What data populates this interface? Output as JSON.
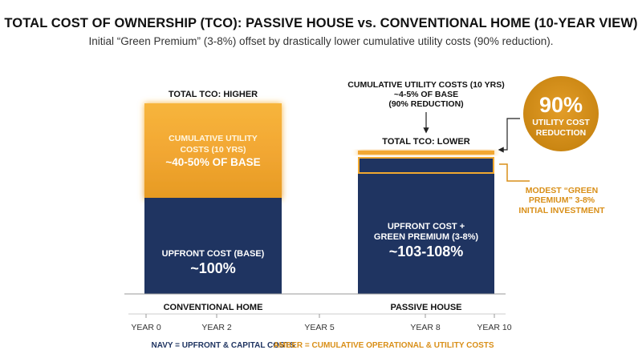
{
  "title": "TOTAL COST OF OWNERSHIP (TCO): PASSIVE HOUSE vs. CONVENTIONAL HOME (10-YEAR VIEW)",
  "subtitle": "Initial “Green Premium” (3-8%) offset by drastically lower cumulative utility costs (90% reduction).",
  "colors": {
    "navy": "#1f3461",
    "amber": "#f0a830",
    "amber_dark": "#d98f18",
    "amber_text": "#d98f18",
    "text": "#111111"
  },
  "chart_data": {
    "type": "bar",
    "stacked": true,
    "categories": [
      "CONVENTIONAL HOME",
      "PASSIVE HOUSE"
    ],
    "x_ticks": [
      "YEAR 0",
      "YEAR 2",
      "YEAR 5",
      "YEAR 8",
      "YEAR 10"
    ],
    "ylim": [
      0,
      160
    ],
    "series": [
      {
        "name": "NAVY = UPFRONT & CAPITAL COSTS",
        "values": [
          100,
          105.5
        ]
      },
      {
        "name": "AMBER = CUMULATIVE OPERATIONAL & UTILITY COSTS",
        "values": [
          45,
          4.5
        ]
      }
    ],
    "bars": [
      {
        "total_label": "TOTAL TCO: HIGHER",
        "base_label": [
          "UPFRONT COST (BASE)"
        ],
        "base_value": "~100%",
        "top_label": [
          "CUMULATIVE UTILITY",
          "COSTS (10 YRS)"
        ],
        "top_value": "~40-50% OF BASE"
      },
      {
        "total_label": "TOTAL TCO: LOWER",
        "base_label": [
          "UPFRONT COST +",
          "GREEN PREMIUM (3-8%)"
        ],
        "base_value": "~103-108%"
      }
    ],
    "annotations": {
      "utility": [
        "CUMULATIVE UTILITY COSTS (10 YRS)",
        "~4-5% OF BASE",
        "(90% REDUCTION)"
      ],
      "badge_value": "90%",
      "badge_text": [
        "UTILITY COST",
        "REDUCTION"
      ],
      "premium": [
        "MODEST “GREEN",
        "PREMIUM” 3-8%",
        "INITIAL INVESTMENT"
      ]
    },
    "legend": [
      {
        "text": "NAVY = UPFRONT & CAPITAL COSTS",
        "color": "#1f3461"
      },
      {
        "text": "AMBER = CUMULATIVE OPERATIONAL & UTILITY COSTS",
        "color": "#d98f18"
      }
    ]
  }
}
